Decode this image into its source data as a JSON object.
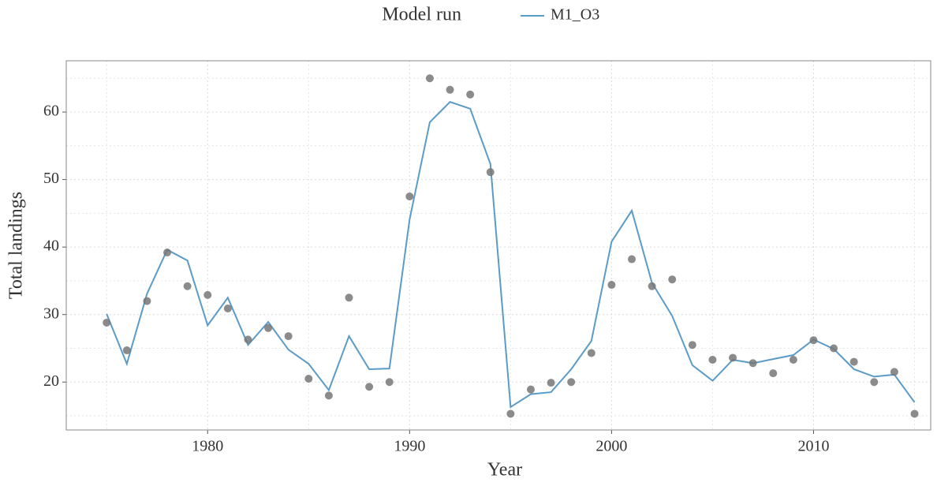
{
  "chart_data": {
    "type": "line",
    "legend_title": "Model run",
    "x_label": "Year",
    "y_label": "Total landings",
    "x": [
      1975,
      1976,
      1977,
      1978,
      1979,
      1980,
      1981,
      1982,
      1983,
      1984,
      1985,
      1986,
      1987,
      1988,
      1989,
      1990,
      1991,
      1992,
      1993,
      1994,
      1995,
      1996,
      1997,
      1998,
      1999,
      2000,
      2001,
      2002,
      2003,
      2004,
      2005,
      2006,
      2007,
      2008,
      2009,
      2010,
      2011,
      2012,
      2013,
      2014,
      2015
    ],
    "series": [
      {
        "name": "M1_O3",
        "color": "#5b9bc8",
        "values": [
          30.1,
          22.7,
          33.1,
          39.6,
          38.0,
          28.4,
          32.5,
          25.5,
          28.9,
          24.8,
          22.7,
          18.8,
          26.8,
          21.9,
          22.0,
          44.1,
          58.5,
          61.5,
          60.5,
          52.3,
          16.3,
          18.2,
          18.5,
          21.9,
          26.1,
          40.8,
          45.4,
          34.7,
          29.8,
          22.5,
          20.2,
          23.3,
          22.8,
          23.4,
          24.0,
          26.3,
          24.9,
          21.9,
          20.8,
          21.1,
          17.0
        ]
      }
    ],
    "observed": {
      "color": "#777777",
      "values": [
        28.8,
        24.7,
        32.0,
        39.2,
        34.2,
        32.9,
        30.9,
        26.3,
        28.0,
        26.8,
        20.5,
        18.0,
        32.5,
        19.3,
        20.0,
        47.5,
        65.0,
        63.3,
        62.6,
        51.1,
        15.3,
        18.9,
        19.9,
        20.0,
        24.3,
        34.4,
        38.2,
        34.2,
        35.2,
        25.5,
        23.3,
        23.6,
        22.8,
        21.3,
        23.3,
        26.2,
        25.0,
        23.0,
        20.0,
        21.5,
        15.3
      ]
    },
    "xlim": [
      1973,
      2015.8
    ],
    "ylim": [
      12.9,
      67.6
    ],
    "xticks": [
      1980,
      1990,
      2000,
      2010
    ],
    "yticks": [
      20,
      30,
      40,
      50,
      60
    ],
    "xminor": [
      1975,
      1985,
      1995,
      2005,
      2015
    ],
    "yminor": [
      15,
      25,
      35,
      45,
      55,
      65
    ],
    "grid": true
  }
}
